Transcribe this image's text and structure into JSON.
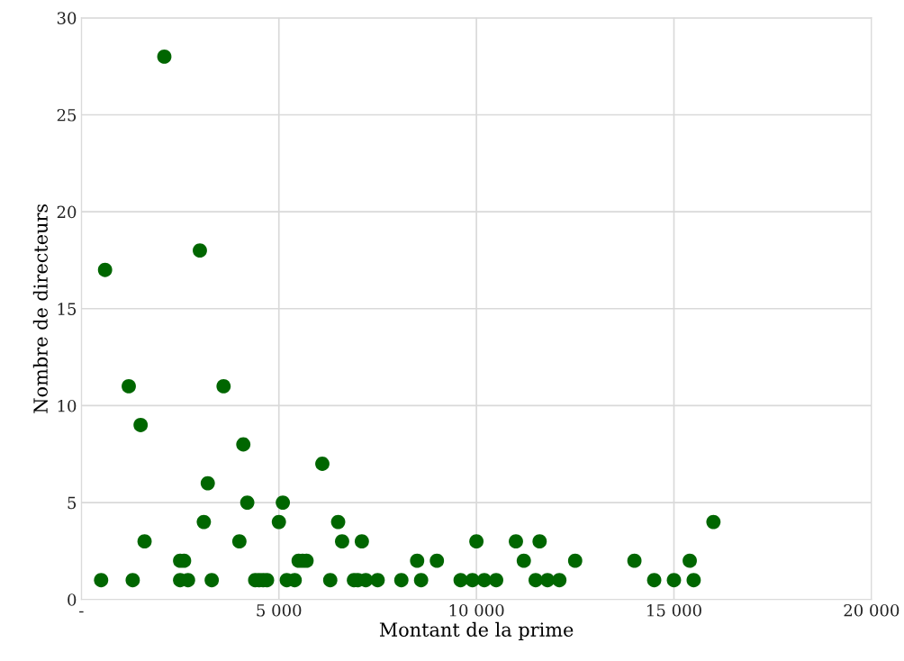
{
  "chart_data": {
    "type": "scatter",
    "xlabel": "Montant de la prime",
    "ylabel": "Nombre de directeurs",
    "x": [
      500,
      600,
      1200,
      1300,
      1500,
      1600,
      2100,
      2500,
      2500,
      2600,
      2700,
      3000,
      3100,
      3200,
      3300,
      3600,
      4000,
      4100,
      4200,
      4400,
      4500,
      4600,
      4700,
      5000,
      5100,
      5200,
      5400,
      5500,
      5600,
      5700,
      6100,
      6300,
      6500,
      6600,
      6900,
      7000,
      7100,
      7200,
      7500,
      8100,
      8500,
      8600,
      9000,
      9600,
      9900,
      10000,
      10200,
      10500,
      11000,
      11200,
      11500,
      11600,
      11800,
      12100,
      12500,
      14000,
      14500,
      15000,
      15400,
      15500,
      16000
    ],
    "values": [
      1,
      17,
      11,
      1,
      9,
      3,
      28,
      1,
      2,
      2,
      1,
      18,
      4,
      6,
      1,
      11,
      3,
      8,
      5,
      1,
      1,
      1,
      1,
      4,
      5,
      1,
      1,
      2,
      2,
      2,
      7,
      1,
      4,
      3,
      1,
      1,
      3,
      1,
      1,
      1,
      2,
      1,
      2,
      1,
      1,
      3,
      1,
      1,
      3,
      2,
      1,
      3,
      1,
      1,
      2,
      2,
      1,
      1,
      2,
      1,
      4
    ],
    "color": "#006600",
    "marker": "circle",
    "xlim": [
      0,
      20000
    ],
    "ylim": [
      0,
      30
    ],
    "xticks": [
      {
        "value": 0,
        "label": "-"
      },
      {
        "value": 5000,
        "label": "5 000"
      },
      {
        "value": 10000,
        "label": "10 000"
      },
      {
        "value": 15000,
        "label": "15 000"
      },
      {
        "value": 20000,
        "label": "20 000"
      }
    ],
    "yticks": [
      0,
      5,
      10,
      15,
      20,
      25,
      30
    ],
    "grid": true
  }
}
